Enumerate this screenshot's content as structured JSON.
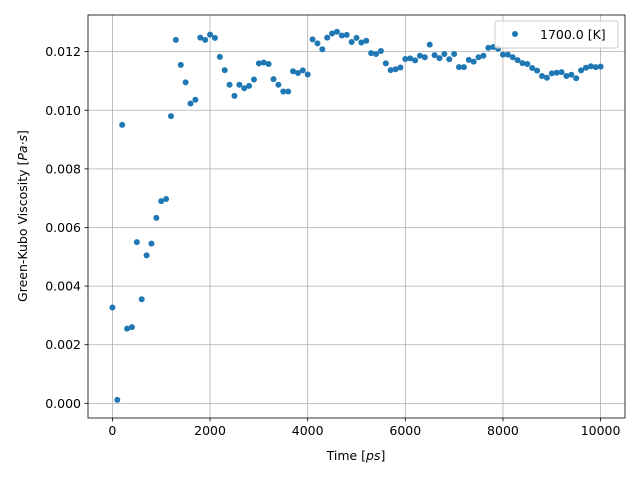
{
  "chart_data": {
    "type": "scatter",
    "xlabel_main": "Time",
    "xlabel_unit": "ps",
    "ylabel_main": "Green-Kubo Viscosity",
    "ylabel_unit": "Pa·s",
    "xlim": [
      -500,
      10500
    ],
    "ylim": [
      -0.0005,
      0.01325
    ],
    "xticks": [
      0,
      2000,
      4000,
      6000,
      8000,
      10000
    ],
    "xtick_labels": [
      "0",
      "2000",
      "4000",
      "6000",
      "8000",
      "10000"
    ],
    "yticks": [
      0.0,
      0.002,
      0.004,
      0.006,
      0.008,
      0.01,
      0.012
    ],
    "ytick_labels": [
      "0.000",
      "0.002",
      "0.004",
      "0.006",
      "0.008",
      "0.010",
      "0.012"
    ],
    "grid": true,
    "legend_position": "top-right",
    "series": [
      {
        "name": "1700.0 [K]",
        "color": "#1f77b4",
        "points": [
          [
            0,
            0.00327
          ],
          [
            100,
            0.00012
          ],
          [
            200,
            0.0095
          ],
          [
            300,
            0.00255
          ],
          [
            400,
            0.0026
          ],
          [
            500,
            0.0055
          ],
          [
            600,
            0.00355
          ],
          [
            700,
            0.00505
          ],
          [
            800,
            0.00545
          ],
          [
            900,
            0.00633
          ],
          [
            1000,
            0.0069
          ],
          [
            1100,
            0.00697
          ],
          [
            1200,
            0.0098
          ],
          [
            1300,
            0.0124
          ],
          [
            1400,
            0.01155
          ],
          [
            1500,
            0.01095
          ],
          [
            1600,
            0.01023
          ],
          [
            1700,
            0.01036
          ],
          [
            1800,
            0.01248
          ],
          [
            1900,
            0.0124
          ],
          [
            2000,
            0.01258
          ],
          [
            2100,
            0.01247
          ],
          [
            2200,
            0.01182
          ],
          [
            2300,
            0.01137
          ],
          [
            2400,
            0.01087
          ],
          [
            2500,
            0.01049
          ],
          [
            2600,
            0.01087
          ],
          [
            2700,
            0.01075
          ],
          [
            2800,
            0.01083
          ],
          [
            2900,
            0.01105
          ],
          [
            3000,
            0.0116
          ],
          [
            3100,
            0.01163
          ],
          [
            3200,
            0.01158
          ],
          [
            3300,
            0.01106
          ],
          [
            3400,
            0.01087
          ],
          [
            3500,
            0.01064
          ],
          [
            3600,
            0.01064
          ],
          [
            3700,
            0.01133
          ],
          [
            3800,
            0.01127
          ],
          [
            3900,
            0.01136
          ],
          [
            4000,
            0.01122
          ],
          [
            4100,
            0.01242
          ],
          [
            4200,
            0.01228
          ],
          [
            4300,
            0.01208
          ],
          [
            4400,
            0.01248
          ],
          [
            4500,
            0.01262
          ],
          [
            4600,
            0.01268
          ],
          [
            4700,
            0.01255
          ],
          [
            4800,
            0.01257
          ],
          [
            4900,
            0.01233
          ],
          [
            5000,
            0.01247
          ],
          [
            5100,
            0.01231
          ],
          [
            5200,
            0.01237
          ],
          [
            5300,
            0.01195
          ],
          [
            5400,
            0.01192
          ],
          [
            5500,
            0.01202
          ],
          [
            5600,
            0.0116
          ],
          [
            5700,
            0.01137
          ],
          [
            5800,
            0.0114
          ],
          [
            5900,
            0.01146
          ],
          [
            6000,
            0.01175
          ],
          [
            6100,
            0.01177
          ],
          [
            6200,
            0.0117
          ],
          [
            6300,
            0.01186
          ],
          [
            6400,
            0.01181
          ],
          [
            6500,
            0.01224
          ],
          [
            6600,
            0.01188
          ],
          [
            6700,
            0.01178
          ],
          [
            6800,
            0.01192
          ],
          [
            6900,
            0.01174
          ],
          [
            7000,
            0.01192
          ],
          [
            7100,
            0.01147
          ],
          [
            7200,
            0.01147
          ],
          [
            7300,
            0.01172
          ],
          [
            7400,
            0.01166
          ],
          [
            7500,
            0.01181
          ],
          [
            7600,
            0.01186
          ],
          [
            7700,
            0.01213
          ],
          [
            7800,
            0.01216
          ],
          [
            7900,
            0.0121
          ],
          [
            8000,
            0.0119
          ],
          [
            8100,
            0.0119
          ],
          [
            8200,
            0.01181
          ],
          [
            8300,
            0.01171
          ],
          [
            8400,
            0.01161
          ],
          [
            8500,
            0.01158
          ],
          [
            8600,
            0.01144
          ],
          [
            8700,
            0.01135
          ],
          [
            8800,
            0.01117
          ],
          [
            8900,
            0.01111
          ],
          [
            9000,
            0.01126
          ],
          [
            9100,
            0.01128
          ],
          [
            9200,
            0.0113
          ],
          [
            9300,
            0.01117
          ],
          [
            9400,
            0.01121
          ],
          [
            9500,
            0.01109
          ],
          [
            9600,
            0.01136
          ],
          [
            9700,
            0.01145
          ],
          [
            9800,
            0.0115
          ],
          [
            9900,
            0.01147
          ],
          [
            10000,
            0.01149
          ]
        ]
      }
    ]
  }
}
